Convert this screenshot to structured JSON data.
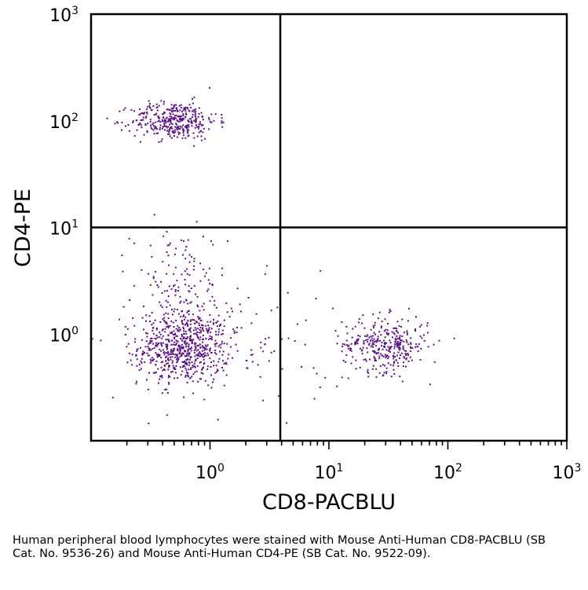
{
  "chart_data": {
    "type": "scatter",
    "xlabel": "CD8-PACBLU",
    "ylabel": "CD4-PE",
    "xscale": "log",
    "yscale": "log",
    "xlim": [
      0.1,
      1000
    ],
    "ylim": [
      0.1,
      1000
    ],
    "x_ticks": [
      {
        "value": 1,
        "base": "10",
        "exp": "0"
      },
      {
        "value": 10,
        "base": "10",
        "exp": "1"
      },
      {
        "value": 100,
        "base": "10",
        "exp": "2"
      },
      {
        "value": 1000,
        "base": "10",
        "exp": "3"
      }
    ],
    "y_ticks": [
      {
        "value": 1,
        "base": "10",
        "exp": "0"
      },
      {
        "value": 10,
        "base": "10",
        "exp": "1"
      },
      {
        "value": 100,
        "base": "10",
        "exp": "2"
      },
      {
        "value": 1000,
        "base": "10",
        "exp": "3"
      }
    ],
    "quadrant_gates": {
      "x": 3.9,
      "y": 10
    },
    "point_color": "#5b0f8a",
    "populations": [
      {
        "center": [
          0.6,
          0.75
        ],
        "spread": [
          0.19,
          0.17
        ],
        "count": 620
      },
      {
        "center": [
          0.55,
          2.5
        ],
        "spread": [
          0.2,
          0.3
        ],
        "count": 160
      },
      {
        "center": [
          0.5,
          100
        ],
        "spread": [
          0.18,
          0.09
        ],
        "count": 360
      },
      {
        "center": [
          30,
          0.8
        ],
        "spread": [
          0.18,
          0.13
        ],
        "count": 330
      },
      {
        "center": [
          1.5,
          0.7
        ],
        "spread": [
          0.5,
          0.3
        ],
        "count": 110
      }
    ]
  },
  "caption": "Human peripheral blood lymphocytes were stained with Mouse Anti-Human CD8-PACBLU (SB Cat. No. 9536-26) and Mouse Anti-Human CD4-PE (SB Cat. No. 9522-09)."
}
